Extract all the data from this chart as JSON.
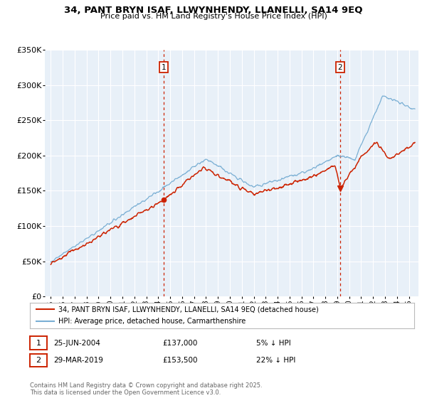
{
  "title_line1": "34, PANT BRYN ISAF, LLWYNHENDY, LLANELLI, SA14 9EQ",
  "title_line2": "Price paid vs. HM Land Registry's House Price Index (HPI)",
  "background_color": "#ffffff",
  "plot_bg_color": "#e8f0f8",
  "grid_color": "#ffffff",
  "hpi_color": "#7aafd4",
  "price_color": "#cc2200",
  "marker1_date": 2004.48,
  "marker1_price": 137000,
  "marker2_date": 2019.24,
  "marker2_price": 153500,
  "legend_entry1": "34, PANT BRYN ISAF, LLWYNHENDY, LLANELLI, SA14 9EQ (detached house)",
  "legend_entry2": "HPI: Average price, detached house, Carmarthenshire",
  "table_row1": [
    "1",
    "25-JUN-2004",
    "£137,000",
    "5% ↓ HPI"
  ],
  "table_row2": [
    "2",
    "29-MAR-2019",
    "£153,500",
    "22% ↓ HPI"
  ],
  "footnote": "Contains HM Land Registry data © Crown copyright and database right 2025.\nThis data is licensed under the Open Government Licence v3.0.",
  "ylim": [
    0,
    350000
  ],
  "xlim_start": 1994.5,
  "xlim_end": 2025.8
}
